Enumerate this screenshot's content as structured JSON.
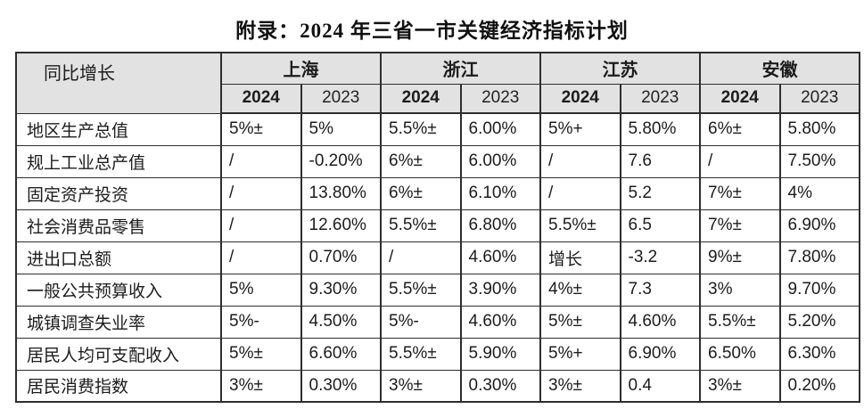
{
  "title": "附录：2024 年三省一市关键经济指标计划",
  "table": {
    "corner_label": "同比增长",
    "provinces": [
      "上海",
      "浙江",
      "江苏",
      "安徽"
    ],
    "year_headers": [
      "2024",
      "2023"
    ],
    "rows": [
      {
        "indicator": "地区生产总值",
        "values": [
          "5%±",
          "5%",
          "5.5%±",
          "6.00%",
          "5%+",
          "5.80%",
          "6%±",
          "5.80%"
        ]
      },
      {
        "indicator": "规上工业总产值",
        "values": [
          "/",
          "-0.20%",
          "6%±",
          "6.00%",
          "/",
          "7.6",
          "/",
          "7.50%"
        ]
      },
      {
        "indicator": "固定资产投资",
        "values": [
          "/",
          "13.80%",
          "6%±",
          "6.10%",
          "/",
          "5.2",
          "7%±",
          "4%"
        ]
      },
      {
        "indicator": "社会消费品零售",
        "values": [
          "/",
          "12.60%",
          "5.5%±",
          "6.80%",
          "5.5%±",
          "6.5",
          "7%±",
          "6.90%"
        ]
      },
      {
        "indicator": "进出口总额",
        "values": [
          "/",
          "0.70%",
          "/",
          "4.60%",
          "增长",
          "-3.2",
          "9%±",
          "7.80%"
        ]
      },
      {
        "indicator": "一般公共预算收入",
        "values": [
          "5%",
          "9.30%",
          "5.5%±",
          "3.90%",
          "4%±",
          "7.3",
          "3%",
          "9.70%"
        ]
      },
      {
        "indicator": "城镇调查失业率",
        "values": [
          "5%-",
          "4.50%",
          "5%-",
          "4.60%",
          "5%±",
          "4.60%",
          "5.5%±",
          "5.20%"
        ]
      },
      {
        "indicator": "居民人均可支配收入",
        "values": [
          "5%±",
          "6.60%",
          "5.5%±",
          "5.90%",
          "5%+",
          "6.90%",
          "6.50%",
          "6.30%"
        ]
      },
      {
        "indicator": "居民消费指数",
        "values": [
          "3%±",
          "0.30%",
          "3%±",
          "0.30%",
          "3%±",
          "0.4",
          "3%±",
          "0.20%"
        ]
      }
    ],
    "colors": {
      "header_bg": "#e2e2e2",
      "border": "#2e2e2e",
      "text": "#1c1c1c"
    }
  }
}
